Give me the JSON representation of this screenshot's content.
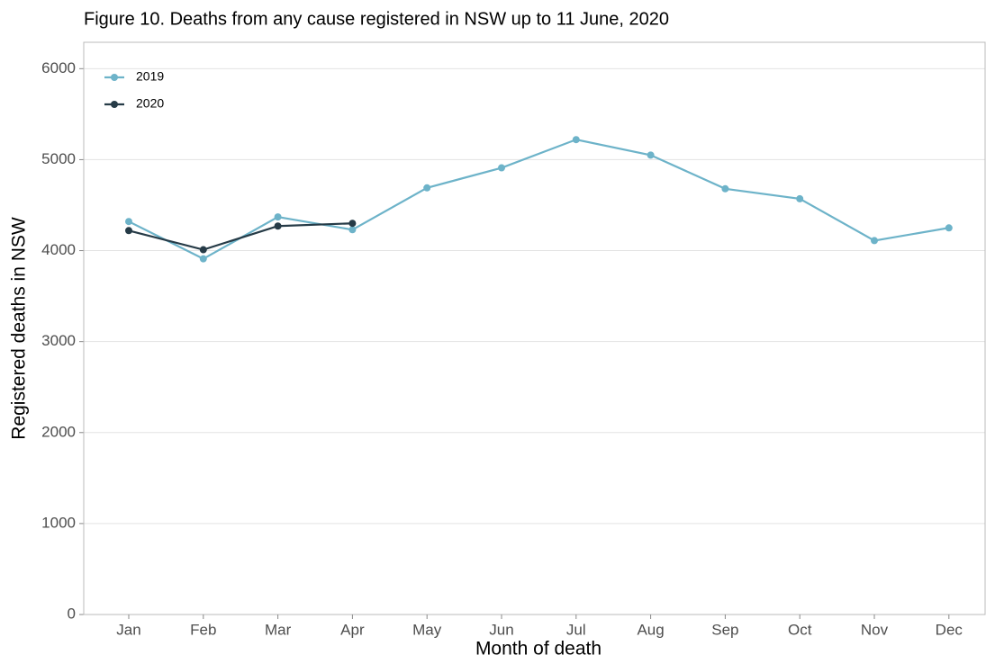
{
  "chart_data": {
    "type": "line",
    "title": "Figure 10. Deaths from any cause registered in NSW up to 11 June, 2020",
    "x_label": "Month of death",
    "y_label": "Registered deaths in NSW",
    "categories": [
      "Jan",
      "Feb",
      "Mar",
      "Apr",
      "May",
      "Jun",
      "Jul",
      "Aug",
      "Sep",
      "Oct",
      "Nov",
      "Dec"
    ],
    "series": [
      {
        "name": "2019",
        "color": "#6db3c9",
        "values": [
          4320,
          3910,
          4370,
          4230,
          4690,
          4910,
          5220,
          5050,
          4680,
          4570,
          4110,
          4250
        ]
      },
      {
        "name": "2020",
        "color": "#263b47",
        "values": [
          4220,
          4010,
          4270,
          4300,
          null,
          null,
          null,
          null,
          null,
          null,
          null,
          null
        ]
      }
    ],
    "ylim": [
      0,
      6290
    ],
    "yticks": [
      0,
      1000,
      2000,
      3000,
      4000,
      5000,
      6000
    ],
    "grid": true,
    "legend": "top-left"
  }
}
